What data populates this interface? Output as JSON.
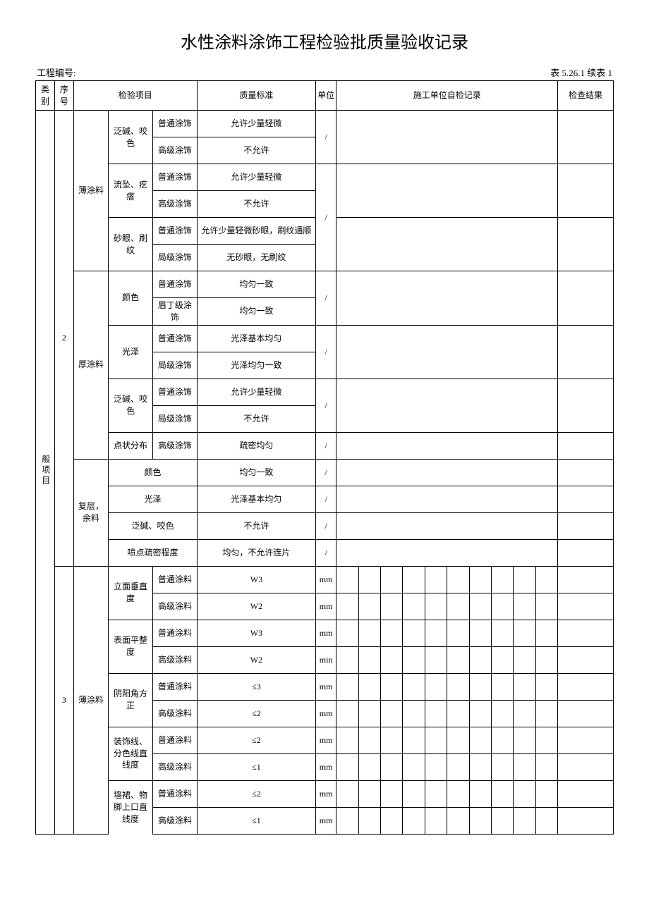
{
  "title": "水性涂料涂饰工程检验批质量验收记录",
  "project_no_label": "工程编号:",
  "table_no": "表 5.26.1 续表 1",
  "header": {
    "cat": "类别",
    "seq": "序号",
    "item": "检验项目",
    "std": "质量标准",
    "unit": "单位",
    "self_check": "施工单位自检记录",
    "result": "检查结果"
  },
  "labels": {
    "cat_main": "般项目",
    "seq2": "2",
    "seq3": "3",
    "g_thin": "薄涂料",
    "g_thick": "厚涂料",
    "g_multi": "复层，余料",
    "g_thin2": "薄涂料",
    "sub_fanjian": "泛碱、咬色",
    "sub_liuzhui": "流坠、疙瘩",
    "sub_shayan": "砂眼、刷纹",
    "sub_yanse": "颜色",
    "sub_guangze": "光泽",
    "sub_fanjian2": "泛碱、咬色",
    "sub_dianzhuang": "点状分布",
    "sub_yanse2": "颜色",
    "sub_guangze2": "光泽",
    "sub_fanjian3": "泛碱、咬色",
    "sub_pendian": "喷点疏密程度",
    "sub_limian": "立面垂直度",
    "sub_biaomian": "表面平整度",
    "sub_yinyang": "阴阳角方正",
    "sub_zhuangshi": "装饰线、分色线直线度",
    "sub_qiangqun": "墙裙、物脚上口直线度",
    "lvl_pt": "普通涂饰",
    "lvl_gj": "高级涂饰",
    "lvl_jj": "局级涂饰",
    "lvl_mj": "眉丁级涂饰",
    "lvl_ptl": "普通涂料",
    "lvl_gjl": "高级涂料"
  },
  "std": {
    "r1": "允许少量轻微",
    "r2": "不允许",
    "r3": "允许少量轻微",
    "r4": "不允许",
    "r5": "允许少量轻微砂眼，刷纹通顺",
    "r6": "无砂眼，无刷纹",
    "r7": "均匀一致",
    "r8": "均匀一致",
    "r9": "光泽基本均匀",
    "r10": "光泽均匀一致",
    "r11": "允许少量轻微",
    "r12": "不允许",
    "r13": "疏密均匀",
    "r14": "均匀一致",
    "r15": "光泽基本均匀",
    "r16": "不允许",
    "r17": "均匀，不允许连片",
    "r18": "W3",
    "r19": "W2",
    "r20": "W3",
    "r21": "W2",
    "r22": "≤3",
    "r23": "≤2",
    "r24": "≤2",
    "r25": "≤1",
    "r26": "≤2",
    "r27": "≤1"
  },
  "units": {
    "slash": "/",
    "mm": "mm",
    "min": "min"
  }
}
